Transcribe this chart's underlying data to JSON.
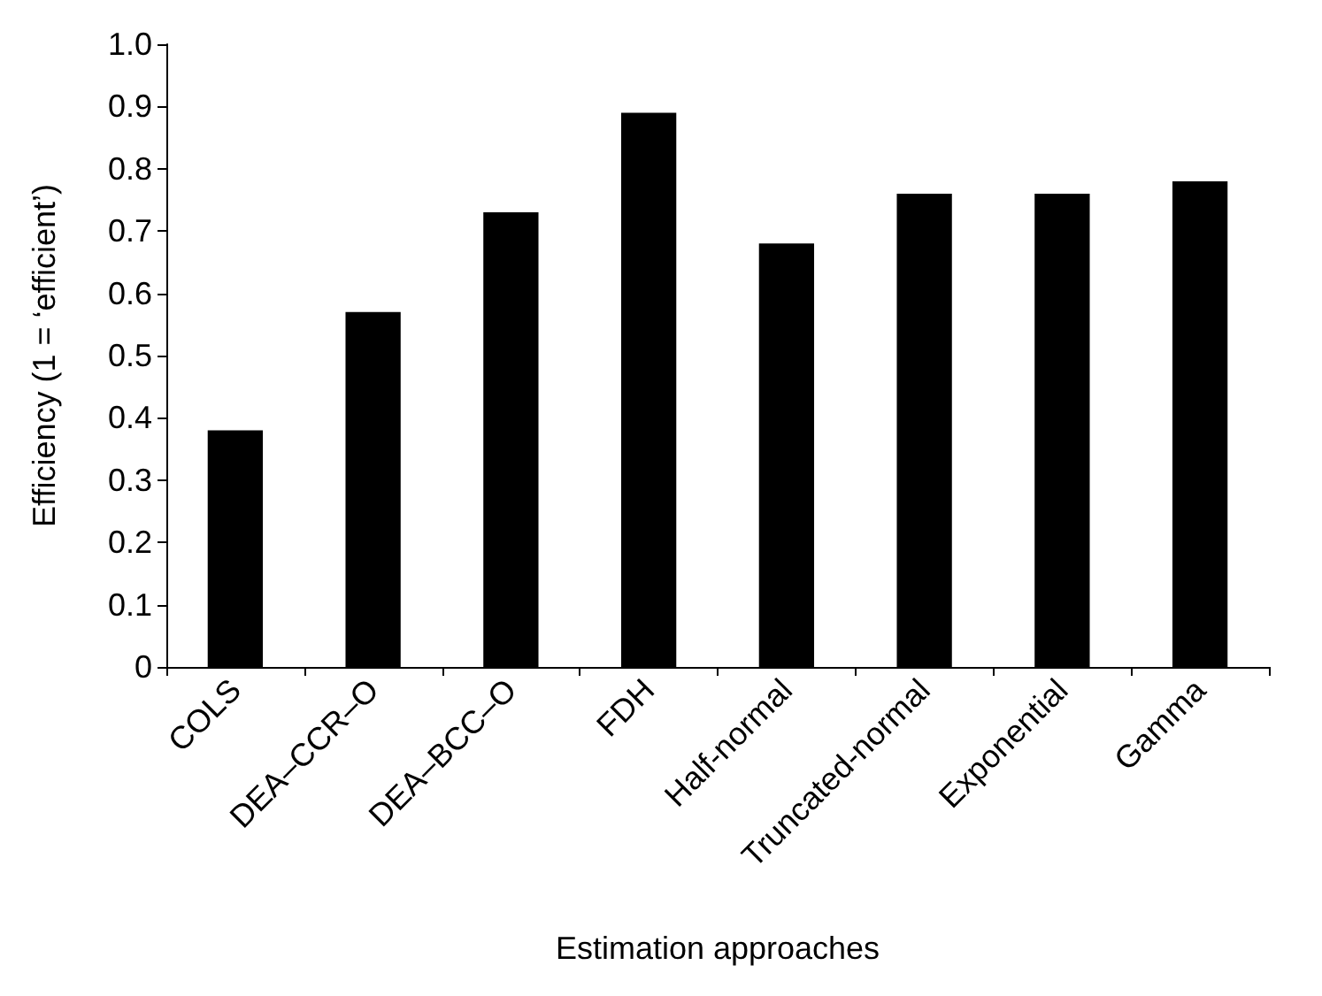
{
  "chart_data": {
    "type": "bar",
    "xlabel": "Estimation approaches",
    "ylabel": "Efficiency (1 = ‘efficient’)",
    "categories": [
      "COLS",
      "DEA–CCR–O",
      "DEA–BCC–O",
      "FDH",
      "Half-normal",
      "Truncated-normal",
      "Exponential",
      "Gamma"
    ],
    "values": [
      0.38,
      0.57,
      0.73,
      0.89,
      0.68,
      0.76,
      0.76,
      0.78
    ],
    "color": "#000000",
    "ylim": [
      0,
      1
    ],
    "yticks": [
      {
        "value": 0,
        "label": "0"
      },
      {
        "value": 0.1,
        "label": "0.1"
      },
      {
        "value": 0.2,
        "label": "0.2"
      },
      {
        "value": 0.3,
        "label": "0.3"
      },
      {
        "value": 0.4,
        "label": "0.4"
      },
      {
        "value": 0.5,
        "label": "0.5"
      },
      {
        "value": 0.6,
        "label": "0.6"
      },
      {
        "value": 0.7,
        "label": "0.7"
      },
      {
        "value": 0.8,
        "label": "0.8"
      },
      {
        "value": 0.9,
        "label": "0.9"
      },
      {
        "value": 1,
        "label": "1.0"
      }
    ],
    "grid": false
  }
}
